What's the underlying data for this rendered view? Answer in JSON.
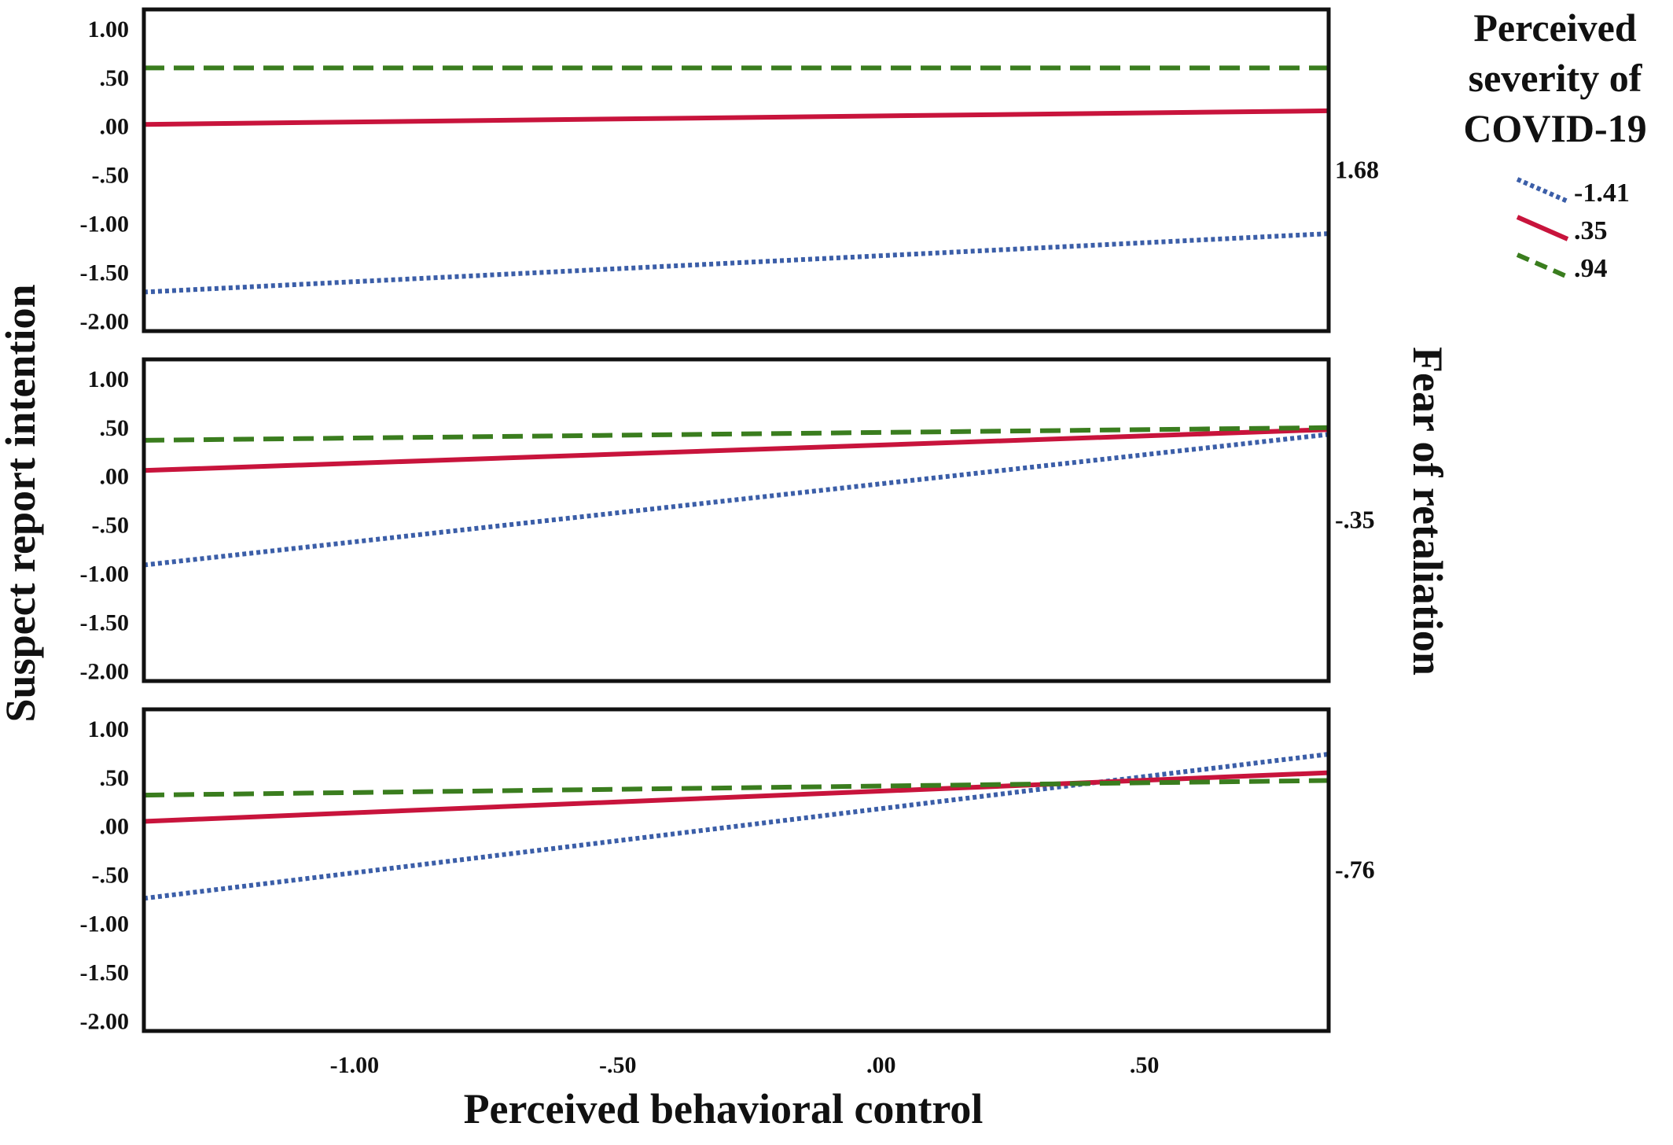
{
  "chart_data": {
    "type": "line",
    "xlabel": "Perceived behavioral control",
    "ylabel": "Suspect report intention",
    "panel_axis_label": "Fear of retaliation",
    "xlim": [
      -1.4,
      0.85
    ],
    "ylim": [
      -2.1,
      1.2
    ],
    "x_ticks": [
      -1.0,
      -0.5,
      0.0,
      0.5
    ],
    "x_tick_labels": [
      "-1.00",
      "-.50",
      ".00",
      ".50"
    ],
    "y_ticks": [
      1.0,
      0.5,
      0.0,
      -0.5,
      -1.0,
      -1.5,
      -2.0
    ],
    "y_tick_labels": [
      "1.00",
      ".50",
      ".00",
      "-.50",
      "-1.00",
      "-1.50",
      "-2.00"
    ],
    "legend": {
      "title": "Perceived severity of COVID-19",
      "title_lines": [
        "Perceived",
        "severity of",
        "COVID-19"
      ],
      "placement": "top-right",
      "entries": [
        {
          "label": "-1.41",
          "color": "#3b5ea8",
          "style": "dotted"
        },
        {
          "label": ".35",
          "color": "#c8143c",
          "style": "solid"
        },
        {
          "label": ".94",
          "color": "#3a7d1e",
          "style": "dashed"
        }
      ]
    },
    "panels": [
      {
        "label": "1.68",
        "series": [
          {
            "name": "-1.41",
            "x": [
              -1.4,
              0.85
            ],
            "y": [
              -1.7,
              -1.1
            ]
          },
          {
            "name": ".35",
            "x": [
              -1.4,
              0.85
            ],
            "y": [
              0.02,
              0.16
            ]
          },
          {
            "name": ".94",
            "x": [
              -1.4,
              0.85
            ],
            "y": [
              0.6,
              0.6
            ]
          }
        ]
      },
      {
        "label": "-.35",
        "series": [
          {
            "name": "-1.41",
            "x": [
              -1.4,
              0.85
            ],
            "y": [
              -0.91,
              0.43
            ]
          },
          {
            "name": ".35",
            "x": [
              -1.4,
              0.85
            ],
            "y": [
              0.06,
              0.48
            ]
          },
          {
            "name": ".94",
            "x": [
              -1.4,
              0.85
            ],
            "y": [
              0.37,
              0.5
            ]
          }
        ]
      },
      {
        "label": "-.76",
        "series": [
          {
            "name": "-1.41",
            "x": [
              -1.4,
              0.85
            ],
            "y": [
              -0.74,
              0.74
            ]
          },
          {
            "name": ".35",
            "x": [
              -1.4,
              0.85
            ],
            "y": [
              0.05,
              0.55
            ]
          },
          {
            "name": ".94",
            "x": [
              -1.4,
              0.85
            ],
            "y": [
              0.32,
              0.47
            ]
          }
        ]
      }
    ]
  }
}
